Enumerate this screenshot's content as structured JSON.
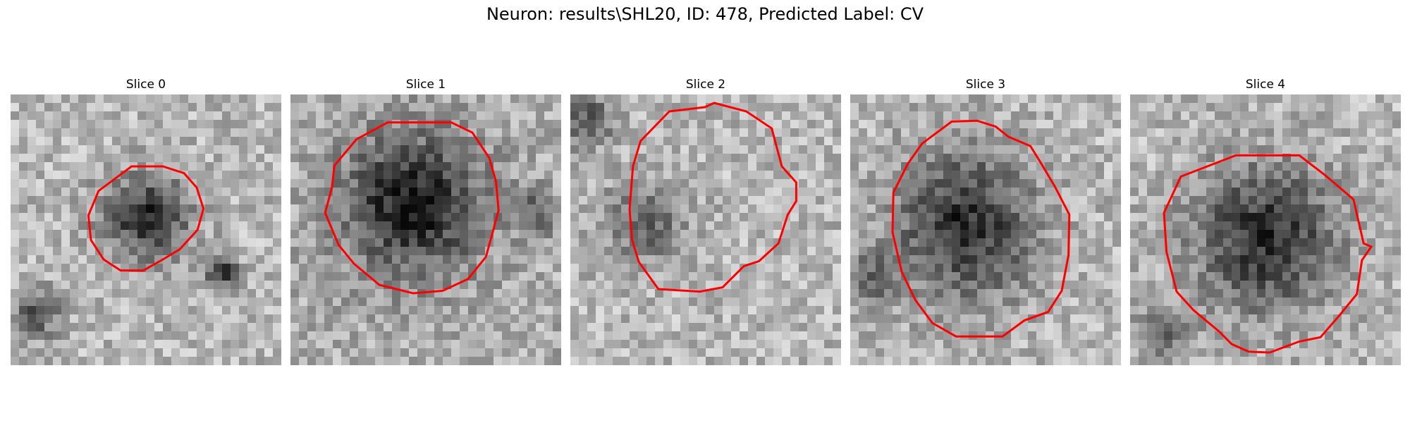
{
  "figure": {
    "title": "Neuron: results\\SHL20, ID: 478, Predicted Label: CV"
  },
  "panels": [
    {
      "label": "Slice 0"
    },
    {
      "label": "Slice 1"
    },
    {
      "label": "Slice 2"
    },
    {
      "label": "Slice 3"
    },
    {
      "label": "Slice 4"
    }
  ],
  "colors": {
    "contour": "#ff0000",
    "colormap": "grayscale"
  }
}
